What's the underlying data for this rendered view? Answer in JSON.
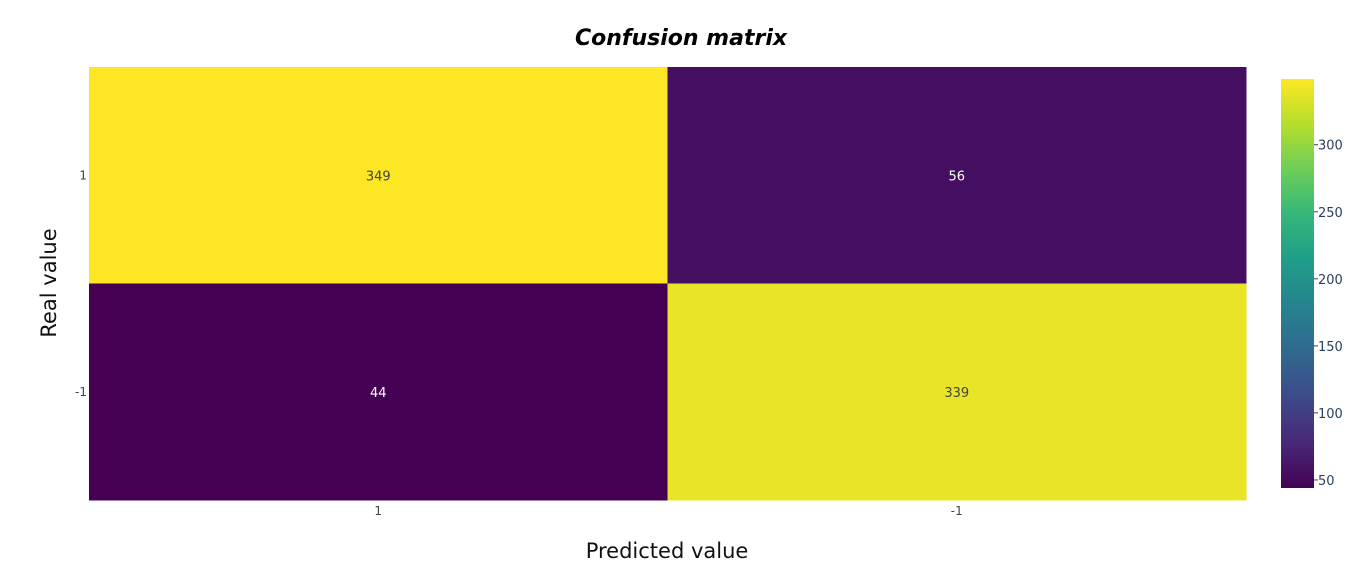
{
  "chart_data": {
    "type": "heatmap",
    "title": "Confusion matrix",
    "xlabel": "Predicted value",
    "ylabel": "Real value",
    "x_categories": [
      "1",
      "-1"
    ],
    "y_categories": [
      "1",
      "-1"
    ],
    "z": [
      [
        349,
        56
      ],
      [
        44,
        339
      ]
    ],
    "colorscale": "viridis",
    "colorbar": {
      "range": [
        44,
        349
      ],
      "ticks": [
        50,
        100,
        150,
        200,
        250,
        300
      ]
    },
    "grid": false
  }
}
